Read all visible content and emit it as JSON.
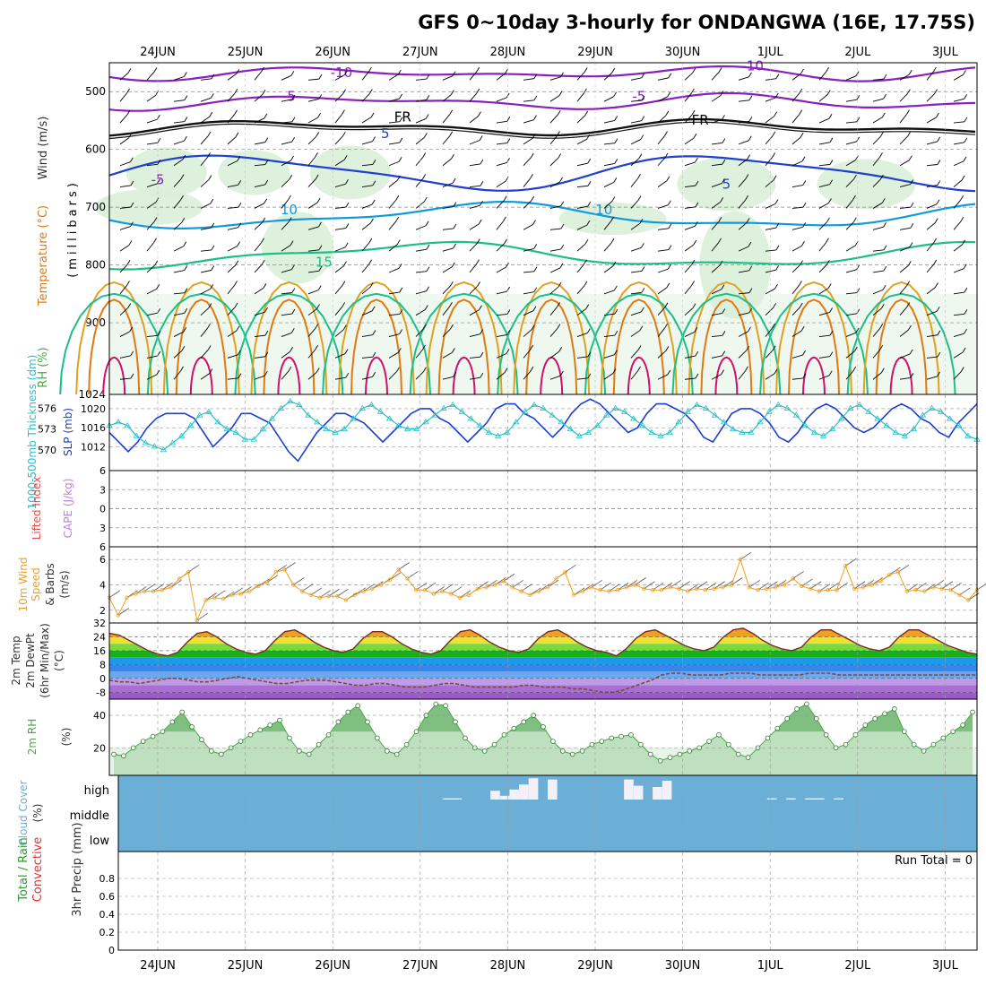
{
  "title": "GFS 0~10day 3-hourly for ONDANGWA (16E, 17.75S)",
  "dates": [
    "24JUN",
    "25JUN",
    "26JUN",
    "27JUN",
    "28JUN",
    "29JUN",
    "30JUN",
    "1JUL",
    "2JUL",
    "3JUL"
  ],
  "colors": {
    "temp_neg10": "#8a1fbf",
    "temp_neg5": "#8a1fbf",
    "freezing": "#111111",
    "temp_5": "#1e3fd0",
    "temp_10": "#0f9ae0",
    "temp_15": "#1cbf8a",
    "temp_20": "#e0a020",
    "temp_25": "#e07a10",
    "temp_30": "#d0106a",
    "rh_fill": "#d9efd9",
    "slp": "#1a3fd8",
    "thickness": "#29c0c8",
    "cape_zero": "#e05050",
    "wind10": "#f0a020",
    "rh2m": "#4aa84a",
    "cloud": "#6baed6",
    "dewpt": "#7a4a3a"
  },
  "chart_data": [
    {
      "type": "heatmap",
      "name": "upper-air",
      "ylabel_parts": [
        "RH (%)",
        "Temperature (°C)",
        "Wind (m/s)"
      ],
      "axis_label": "(millibars)",
      "yticks": [
        500,
        600,
        700,
        800,
        900,
        1024
      ],
      "ylim": [
        450,
        1024
      ],
      "contour_labels": [
        {
          "text": "-10",
          "day": 3.1,
          "p": 475
        },
        {
          "text": "-10",
          "day": 7.8,
          "p": 463
        },
        {
          "text": "-5",
          "day": 2.5,
          "p": 516
        },
        {
          "text": "-5",
          "day": 6.5,
          "p": 516
        },
        {
          "text": "FR",
          "day": 3.8,
          "p": 552
        },
        {
          "text": "FR",
          "day": 7.2,
          "p": 557
        },
        {
          "text": "5",
          "day": 3.6,
          "p": 580
        },
        {
          "text": "-5",
          "day": 1.0,
          "p": 660
        },
        {
          "text": "5",
          "day": 7.5,
          "p": 668
        },
        {
          "text": "10",
          "day": 2.5,
          "p": 712
        },
        {
          "text": "10",
          "day": 6.1,
          "p": 712
        },
        {
          "text": "15",
          "day": 2.9,
          "p": 803
        }
      ]
    },
    {
      "type": "line",
      "name": "slp-thickness",
      "ylabel_left": "1000-500mb Thickness (dm)",
      "ylabel_right": "SLP (mb)",
      "yticks_left": [
        570,
        573,
        576
      ],
      "yticks_right": [
        1012,
        1016,
        1020
      ],
      "series": [
        {
          "name": "SLP",
          "axis": "right",
          "values": [
            1015,
            1013,
            1011,
            1013,
            1016,
            1018,
            1019,
            1019,
            1019,
            1018,
            1015,
            1012,
            1014,
            1016,
            1019,
            1019,
            1018,
            1017,
            1014,
            1011,
            1009,
            1012,
            1015,
            1017,
            1019,
            1019,
            1018,
            1017,
            1015,
            1013,
            1015,
            1017,
            1019,
            1020,
            1020,
            1018,
            1017,
            1015,
            1013,
            1015,
            1017,
            1020,
            1021,
            1021,
            1019,
            1018,
            1016,
            1014,
            1016,
            1019,
            1021,
            1022,
            1021,
            1019,
            1017,
            1015,
            1016,
            1019,
            1021,
            1021,
            1020,
            1019,
            1017,
            1014,
            1013,
            1016,
            1019,
            1020,
            1020,
            1019,
            1017,
            1014,
            1013,
            1015,
            1018,
            1020,
            1021,
            1020,
            1018,
            1016,
            1015,
            1016,
            1018,
            1020,
            1021,
            1020,
            1018,
            1017,
            1015,
            1014,
            1017,
            1019,
            1021
          ]
        },
        {
          "name": "Thickness",
          "axis": "left",
          "values": [
            573.5,
            574,
            573.5,
            572,
            571,
            570.5,
            570,
            571,
            572,
            573.5,
            575,
            575.5,
            574,
            573,
            572.5,
            571.5,
            571.5,
            573,
            574.5,
            576,
            577,
            576.5,
            575,
            574,
            573,
            572.5,
            573,
            574.5,
            576,
            576.5,
            575.5,
            574.5,
            573.5,
            573,
            573,
            574,
            575,
            576,
            576.5,
            575.5,
            574.5,
            573.5,
            572.5,
            572,
            572.5,
            574,
            575.5,
            576.5,
            576,
            575,
            574,
            573,
            572,
            572.5,
            573.5,
            575,
            576,
            575.5,
            574.5,
            573.5,
            572.5,
            572,
            572.5,
            574,
            575.5,
            576.5,
            576,
            575,
            574,
            573,
            572.5,
            572.5,
            574,
            575.5,
            576.5,
            576,
            575,
            573.5,
            572.5,
            572,
            573,
            574.5,
            576,
            576.5,
            575.5,
            574.5,
            573.5,
            572.5,
            572,
            573,
            575,
            576,
            575.5,
            574.5,
            573.5,
            572,
            571.5
          ]
        }
      ]
    },
    {
      "type": "line",
      "name": "cape-li",
      "ylabel_parts": [
        "Lifted Index",
        "CAPE (J/kg)"
      ],
      "yticks": [
        -6,
        -3,
        0,
        3,
        6
      ],
      "ytick_labels": [
        "6",
        "3",
        "0",
        "3",
        "6"
      ],
      "series": []
    },
    {
      "type": "line",
      "name": "wind10m",
      "ylabel_parts": [
        "10m Wind",
        "Speed",
        "& Barbs",
        "(m/s)"
      ],
      "yticks": [
        2,
        4,
        6
      ],
      "ylim": [
        1,
        7
      ],
      "series": [
        {
          "name": "10m Wind Speed",
          "values": [
            3.0,
            1.6,
            3.0,
            3.3,
            3.5,
            3.5,
            3.6,
            3.8,
            4.5,
            5.0,
            1.2,
            2.8,
            3.0,
            2.9,
            3.2,
            3.3,
            3.5,
            3.9,
            4.2,
            5.0,
            5.2,
            4.0,
            3.5,
            3.2,
            3.0,
            3.1,
            3.1,
            2.8,
            3.2,
            3.5,
            3.7,
            4.0,
            4.4,
            5.2,
            4.5,
            3.6,
            3.6,
            3.3,
            3.5,
            3.3,
            3.0,
            3.2,
            3.7,
            3.8,
            4.0,
            4.3,
            3.8,
            3.5,
            3.2,
            3.5,
            3.8,
            4.5,
            5.0,
            3.2,
            3.5,
            3.8,
            3.6,
            3.5,
            3.6,
            3.8,
            4.0,
            3.7,
            3.6,
            3.6,
            3.8,
            3.7,
            3.5,
            3.7,
            3.6,
            3.7,
            3.8,
            4.0,
            6.0,
            3.8,
            3.6,
            3.7,
            3.8,
            4.0,
            4.5,
            3.9,
            3.7,
            3.5,
            3.6,
            3.6,
            5.5,
            3.7,
            3.8,
            4.0,
            4.3,
            4.8,
            5.0,
            3.5,
            3.6,
            3.5,
            3.8,
            3.7,
            3.6,
            3.2,
            2.8,
            3.6
          ]
        }
      ]
    },
    {
      "type": "area",
      "name": "temp2m",
      "ylabel_parts": [
        "2m Temp",
        "2m DewPt",
        "(6hr Min/Max)",
        "(°C)"
      ],
      "yticks": [
        -8,
        0,
        8,
        16,
        24,
        32
      ],
      "ylim": [
        -12,
        32
      ],
      "series": [
        {
          "name": "2m Temp",
          "values": [
            26,
            25,
            22,
            19,
            16,
            14,
            13,
            15,
            21,
            26,
            27,
            24,
            20,
            17,
            15,
            14,
            16,
            22,
            27,
            28,
            25,
            21,
            18,
            16,
            15,
            17,
            23,
            27,
            27,
            24,
            20,
            17,
            15,
            14,
            16,
            22,
            27,
            28,
            25,
            21,
            18,
            16,
            15,
            17,
            23,
            27,
            28,
            25,
            21,
            18,
            16,
            15,
            13,
            17,
            23,
            27,
            28,
            25,
            22,
            19,
            17,
            16,
            18,
            24,
            28,
            29,
            26,
            22,
            19,
            17,
            16,
            18,
            24,
            28,
            28,
            25,
            22,
            19,
            17,
            16,
            18,
            24,
            28,
            28,
            25,
            22,
            19,
            17,
            15,
            14
          ]
        },
        {
          "name": "2m DewPt",
          "values": [
            -1,
            -2,
            -2,
            -3,
            -2,
            -1,
            0,
            0,
            -1,
            -2,
            -2,
            -1,
            0,
            1,
            0,
            -1,
            -2,
            -3,
            -3,
            -2,
            -1,
            -1,
            -1,
            -2,
            -3,
            -4,
            -4,
            -3,
            -3,
            -4,
            -5,
            -5,
            -5,
            -4,
            -3,
            -3,
            -4,
            -5,
            -5,
            -5,
            -5,
            -5,
            -4,
            -4,
            -5,
            -5,
            -5,
            -6,
            -6,
            -7,
            -8,
            -8,
            -7,
            -5,
            -3,
            -1,
            2,
            3,
            3,
            2,
            2,
            2,
            2,
            3,
            3,
            3,
            2,
            2,
            2,
            2,
            2,
            3,
            3,
            3,
            2,
            2,
            2,
            2,
            2,
            2,
            2,
            2,
            2,
            2,
            2,
            2,
            2,
            2,
            2
          ]
        }
      ]
    },
    {
      "type": "area",
      "name": "rh2m",
      "ylabel_parts": [
        "2m RH",
        "(%)"
      ],
      "yticks": [
        20,
        40
      ],
      "ylim": [
        3,
        50
      ],
      "series": [
        {
          "name": "2m RH",
          "values": [
            16,
            15,
            20,
            24,
            27,
            30,
            36,
            42,
            33,
            25,
            18,
            16,
            20,
            24,
            28,
            31,
            34,
            37,
            26,
            18,
            16,
            22,
            28,
            36,
            42,
            46,
            36,
            26,
            18,
            16,
            22,
            30,
            40,
            47,
            46,
            36,
            26,
            20,
            18,
            22,
            28,
            32,
            36,
            40,
            33,
            24,
            18,
            16,
            18,
            22,
            24,
            26,
            27,
            28,
            22,
            16,
            12,
            14,
            16,
            18,
            20,
            24,
            28,
            22,
            16,
            14,
            20,
            26,
            32,
            38,
            44,
            47,
            38,
            28,
            20,
            22,
            28,
            34,
            38,
            41,
            44,
            30,
            22,
            18,
            22,
            26,
            30,
            34,
            42
          ]
        }
      ]
    },
    {
      "type": "area",
      "name": "cloud-cover",
      "ylabel_parts": [
        "Cloud Cover",
        "(%)"
      ],
      "yticks_labels": [
        "high",
        "middle",
        "low"
      ],
      "series": [
        {
          "name": "high cloud",
          "values": [
            0,
            0,
            0,
            0,
            0,
            0,
            0,
            0,
            0,
            0,
            0,
            0,
            0,
            0,
            0,
            0,
            0,
            0,
            0,
            0,
            0,
            0,
            0,
            0,
            0,
            0,
            0,
            0,
            0,
            0,
            0,
            0,
            0,
            0,
            5,
            5,
            0,
            0,
            0,
            35,
            15,
            40,
            60,
            85,
            0,
            80,
            0,
            0,
            0,
            0,
            0,
            0,
            0,
            80,
            55,
            0,
            50,
            75,
            0,
            0,
            0,
            0,
            0,
            0,
            0,
            0,
            0,
            0,
            5,
            0,
            5,
            0,
            5,
            5,
            0,
            5,
            0,
            0,
            0,
            0,
            0,
            0,
            0,
            0,
            0,
            0,
            0,
            0,
            0,
            0
          ]
        }
      ]
    },
    {
      "type": "bar",
      "name": "precip",
      "ylabel_parts": [
        "Total / Rain",
        "Convective",
        "3hr Precip (mm)"
      ],
      "yticks": [
        0,
        0.2,
        0.4,
        0.6,
        0.8
      ],
      "ylim": [
        0,
        1
      ],
      "annotation": "Run Total = 0",
      "series": []
    }
  ]
}
